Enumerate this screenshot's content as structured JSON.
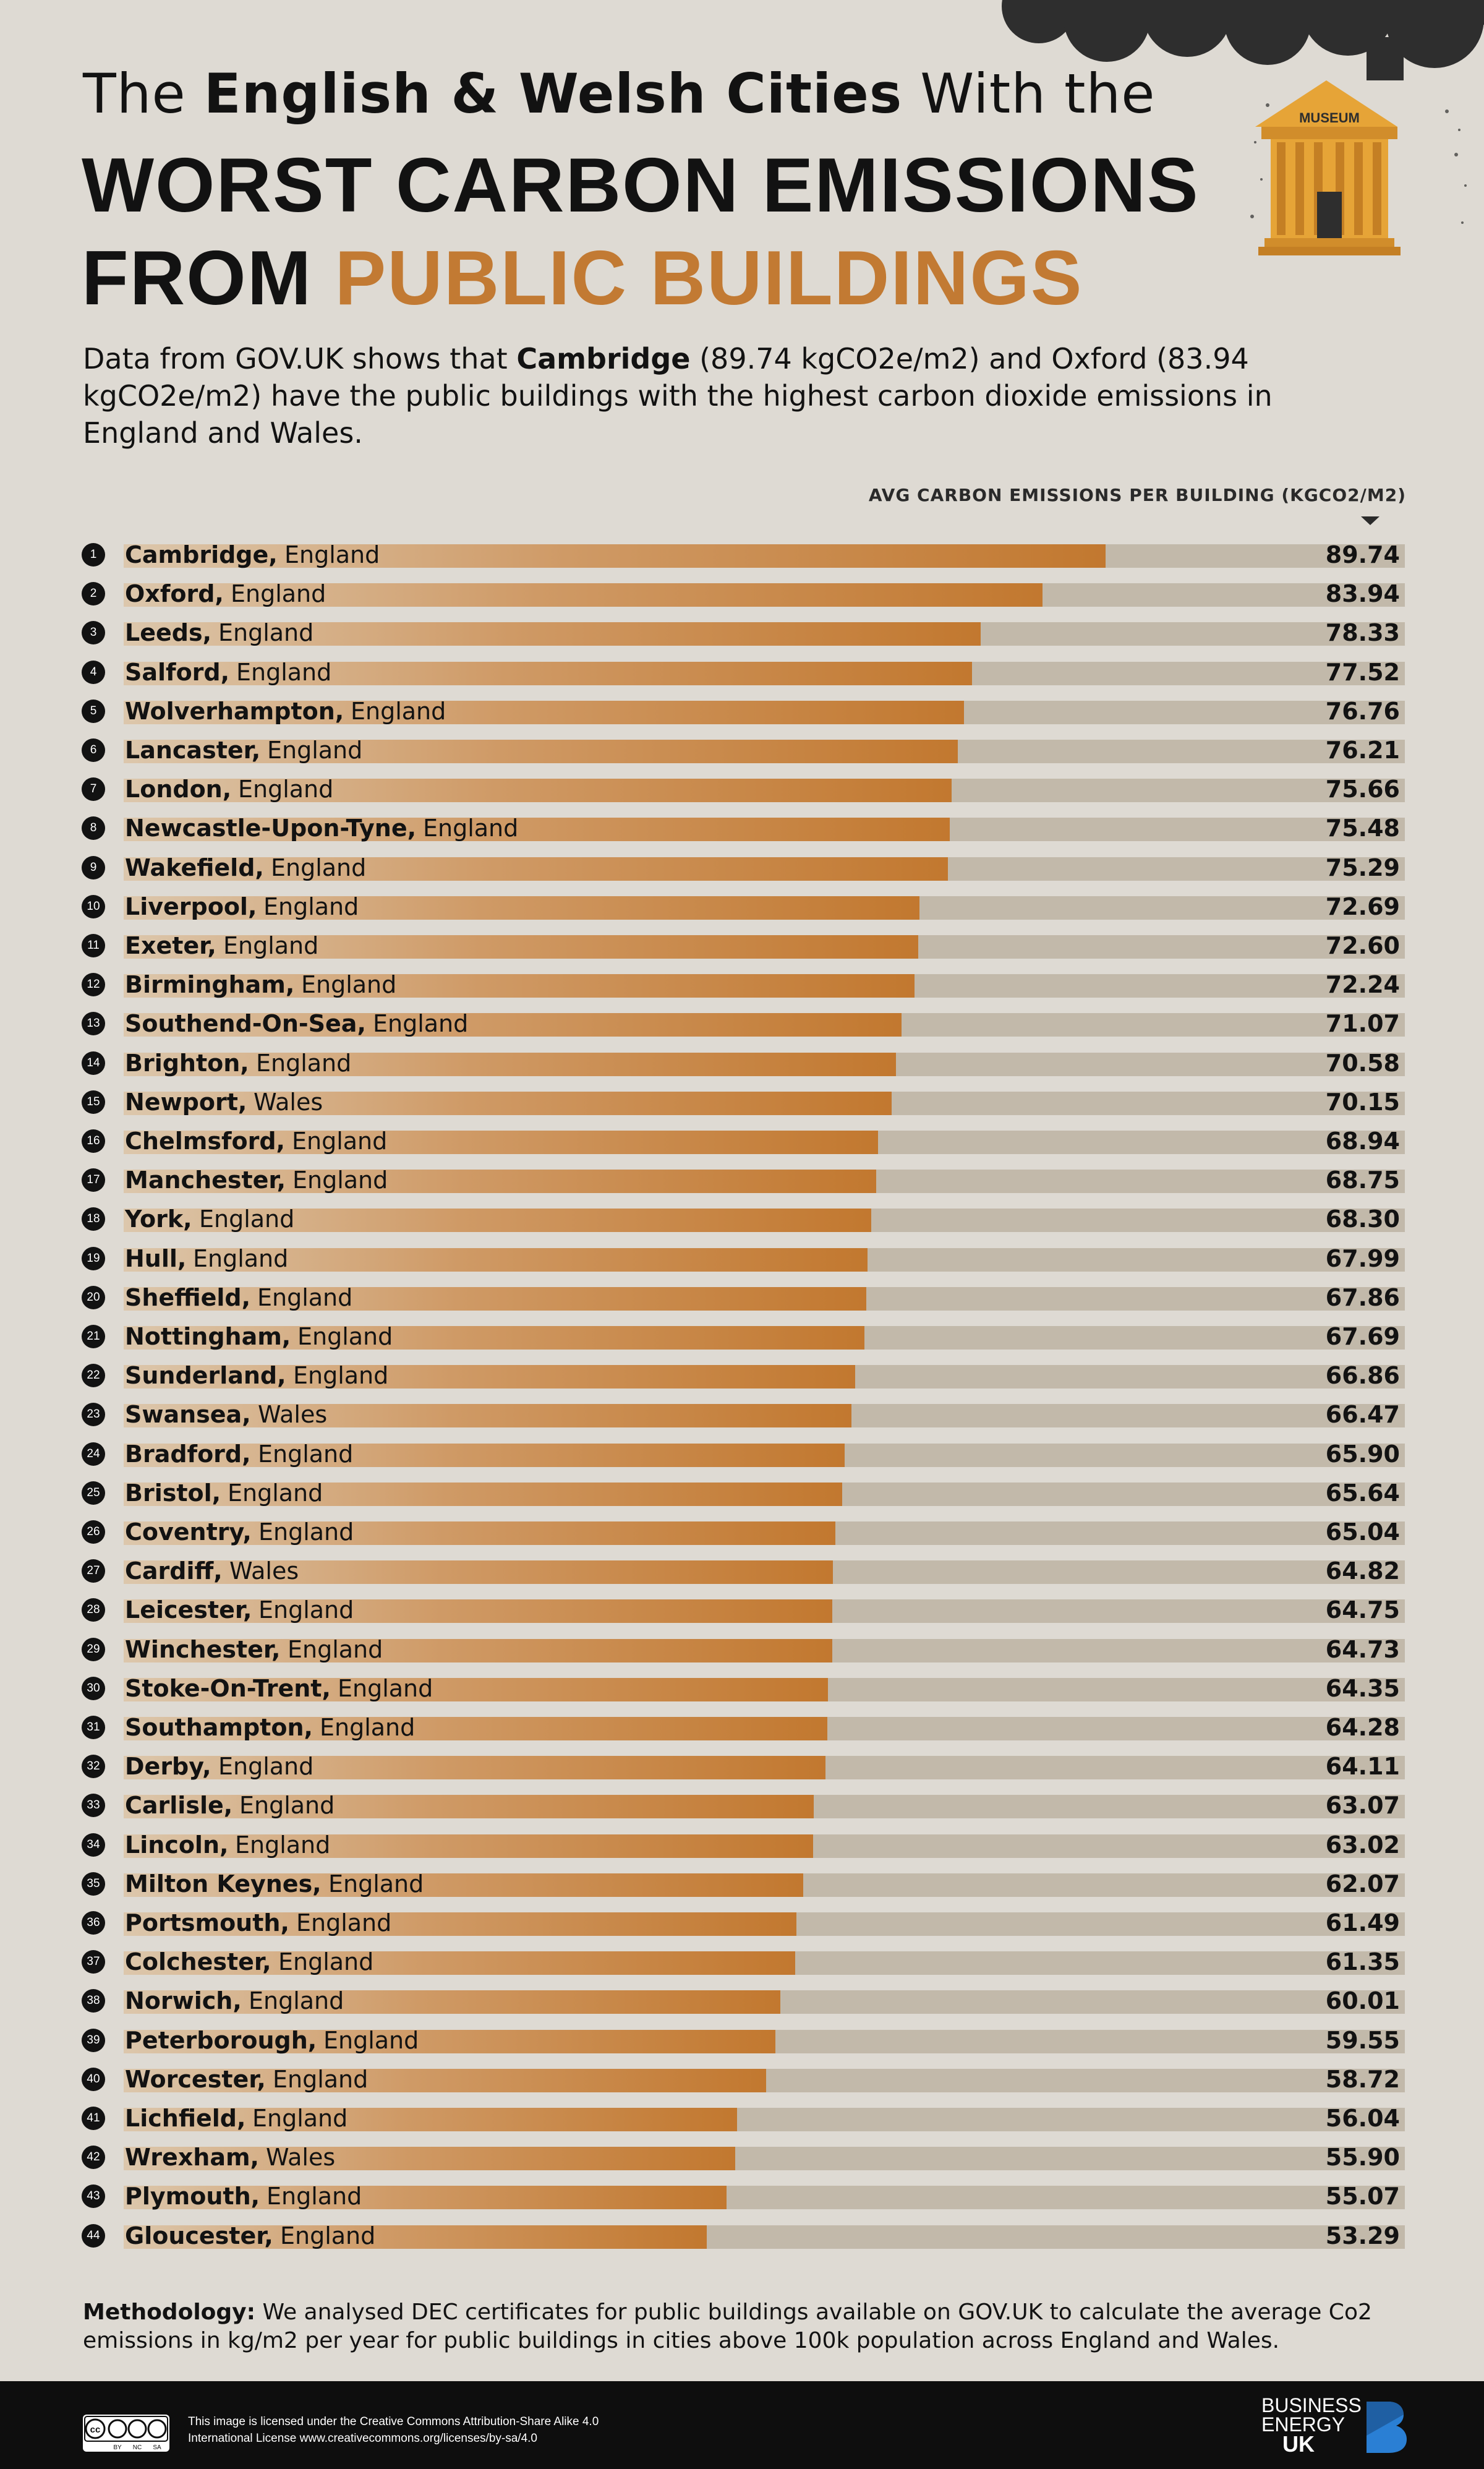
{
  "header": {
    "line1_normal_a": "The ",
    "line1_bold": "English & Welsh Cities",
    "line1_normal_b": " With the",
    "line2": "WORST CARBON EMISSIONS",
    "line3_black": "FROM ",
    "line3_orange": "PUBLIC BUILDINGS",
    "museum_label": "MUSEUM"
  },
  "intro": {
    "part1": "Data from GOV.UK shows that ",
    "bold": "Cambridge",
    "part2": " (89.74 kgCO2e/m2) and Oxford (83.94 kgCO2e/m2) have the public buildings with the highest carbon dioxide emissions in England and Wales."
  },
  "chart_data": {
    "type": "bar",
    "orientation": "horizontal",
    "title": "The English & Welsh Cities With the Worst Carbon Emissions From Public Buildings",
    "value_label": "AVG CARBON EMISSIONS PER BUILDING (KGCO2/M2)",
    "xlim": [
      0,
      95
    ],
    "categories": [
      {
        "rank": "1",
        "city": "Cambridge,",
        "country": "England",
        "value": 89.74,
        "label": "89.74"
      },
      {
        "rank": "2",
        "city": "Oxford,",
        "country": "England",
        "value": 83.94,
        "label": "83.94"
      },
      {
        "rank": "3",
        "city": "Leeds,",
        "country": "England",
        "value": 78.33,
        "label": "78.33"
      },
      {
        "rank": "4",
        "city": "Salford,",
        "country": "England",
        "value": 77.52,
        "label": "77.52"
      },
      {
        "rank": "5",
        "city": "Wolverhampton,",
        "country": "England",
        "value": 76.76,
        "label": "76.76"
      },
      {
        "rank": "6",
        "city": "Lancaster,",
        "country": "England",
        "value": 76.21,
        "label": "76.21"
      },
      {
        "rank": "7",
        "city": "London,",
        "country": "England",
        "value": 75.66,
        "label": "75.66"
      },
      {
        "rank": "8",
        "city": "Newcastle-Upon-Tyne,",
        "country": "England",
        "value": 75.48,
        "label": "75.48"
      },
      {
        "rank": "9",
        "city": "Wakefield,",
        "country": "England",
        "value": 75.29,
        "label": "75.29"
      },
      {
        "rank": "10",
        "city": "Liverpool,",
        "country": "England",
        "value": 72.69,
        "label": "72.69"
      },
      {
        "rank": "11",
        "city": "Exeter,",
        "country": "England",
        "value": 72.6,
        "label": "72.60"
      },
      {
        "rank": "12",
        "city": "Birmingham,",
        "country": "England",
        "value": 72.24,
        "label": "72.24"
      },
      {
        "rank": "13",
        "city": "Southend-On-Sea,",
        "country": "England",
        "value": 71.07,
        "label": "71.07"
      },
      {
        "rank": "14",
        "city": "Brighton,",
        "country": "England",
        "value": 70.58,
        "label": "70.58"
      },
      {
        "rank": "15",
        "city": "Newport,",
        "country": "Wales",
        "value": 70.15,
        "label": "70.15"
      },
      {
        "rank": "16",
        "city": "Chelmsford,",
        "country": "England",
        "value": 68.94,
        "label": "68.94"
      },
      {
        "rank": "17",
        "city": "Manchester,",
        "country": "England",
        "value": 68.75,
        "label": "68.75"
      },
      {
        "rank": "18",
        "city": "York,",
        "country": "England",
        "value": 68.3,
        "label": "68.30"
      },
      {
        "rank": "19",
        "city": "Hull,",
        "country": "England",
        "value": 67.99,
        "label": "67.99"
      },
      {
        "rank": "20",
        "city": "Sheffield,",
        "country": "England",
        "value": 67.86,
        "label": "67.86"
      },
      {
        "rank": "21",
        "city": "Nottingham,",
        "country": "England",
        "value": 67.69,
        "label": "67.69"
      },
      {
        "rank": "22",
        "city": "Sunderland,",
        "country": "England",
        "value": 66.86,
        "label": "66.86"
      },
      {
        "rank": "23",
        "city": "Swansea,",
        "country": "Wales",
        "value": 66.47,
        "label": "66.47"
      },
      {
        "rank": "24",
        "city": "Bradford,",
        "country": "England",
        "value": 65.9,
        "label": "65.90"
      },
      {
        "rank": "25",
        "city": "Bristol,",
        "country": "England",
        "value": 65.64,
        "label": "65.64"
      },
      {
        "rank": "26",
        "city": "Coventry,",
        "country": "England",
        "value": 65.04,
        "label": "65.04"
      },
      {
        "rank": "27",
        "city": "Cardiff,",
        "country": "Wales",
        "value": 64.82,
        "label": "64.82"
      },
      {
        "rank": "28",
        "city": "Leicester,",
        "country": "England",
        "value": 64.75,
        "label": "64.75"
      },
      {
        "rank": "29",
        "city": "Winchester,",
        "country": "England",
        "value": 64.73,
        "label": "64.73"
      },
      {
        "rank": "30",
        "city": "Stoke-On-Trent,",
        "country": "England",
        "value": 64.35,
        "label": "64.35"
      },
      {
        "rank": "31",
        "city": "Southampton,",
        "country": "England",
        "value": 64.28,
        "label": "64.28"
      },
      {
        "rank": "32",
        "city": "Derby,",
        "country": "England",
        "value": 64.11,
        "label": "64.11"
      },
      {
        "rank": "33",
        "city": "Carlisle,",
        "country": "England",
        "value": 63.07,
        "label": "63.07"
      },
      {
        "rank": "34",
        "city": "Lincoln,",
        "country": "England",
        "value": 63.02,
        "label": "63.02"
      },
      {
        "rank": "35",
        "city": "Milton Keynes,",
        "country": "England",
        "value": 62.07,
        "label": "62.07"
      },
      {
        "rank": "36",
        "city": "Portsmouth,",
        "country": "England",
        "value": 61.49,
        "label": "61.49"
      },
      {
        "rank": "37",
        "city": "Colchester,",
        "country": "England",
        "value": 61.35,
        "label": "61.35"
      },
      {
        "rank": "38",
        "city": "Norwich,",
        "country": "England",
        "value": 60.01,
        "label": "60.01"
      },
      {
        "rank": "39",
        "city": "Peterborough,",
        "country": "England",
        "value": 59.55,
        "label": "59.55"
      },
      {
        "rank": "40",
        "city": "Worcester,",
        "country": "England",
        "value": 58.72,
        "label": "58.72"
      },
      {
        "rank": "41",
        "city": "Lichfield,",
        "country": "England",
        "value": 56.04,
        "label": "56.04"
      },
      {
        "rank": "42",
        "city": "Wrexham,",
        "country": "Wales",
        "value": 55.9,
        "label": "55.90"
      },
      {
        "rank": "43",
        "city": "Plymouth,",
        "country": "England",
        "value": 55.07,
        "label": "55.07"
      },
      {
        "rank": "44",
        "city": "Gloucester,",
        "country": "England",
        "value": 53.29,
        "label": "53.29"
      }
    ]
  },
  "methodology": {
    "label": "Methodology:",
    "text": " We analysed DEC certificates for public buildings available on GOV.UK to calculate the average Co2 emissions in kg/m2 per year for public buildings in cities above 100k population across England and Wales."
  },
  "footer": {
    "license_line1": "This image is licensed under the Creative Commons Attribution-Share Alike 4.0",
    "license_line2": "International License www.creativecommons.org/licenses/by-sa/4.0",
    "brand_line1": "BUSINESS",
    "brand_line2": "ENERGY",
    "brand_line3": "UK",
    "cc_labels": [
      "cc",
      "BY",
      "NC",
      "SA"
    ]
  },
  "colors": {
    "background": "#dedad3",
    "bar_end": "#c2782f",
    "bar_start": "#dcc7ac",
    "track": "#c2b9aa",
    "accent": "#c27a33",
    "text": "#121212"
  }
}
